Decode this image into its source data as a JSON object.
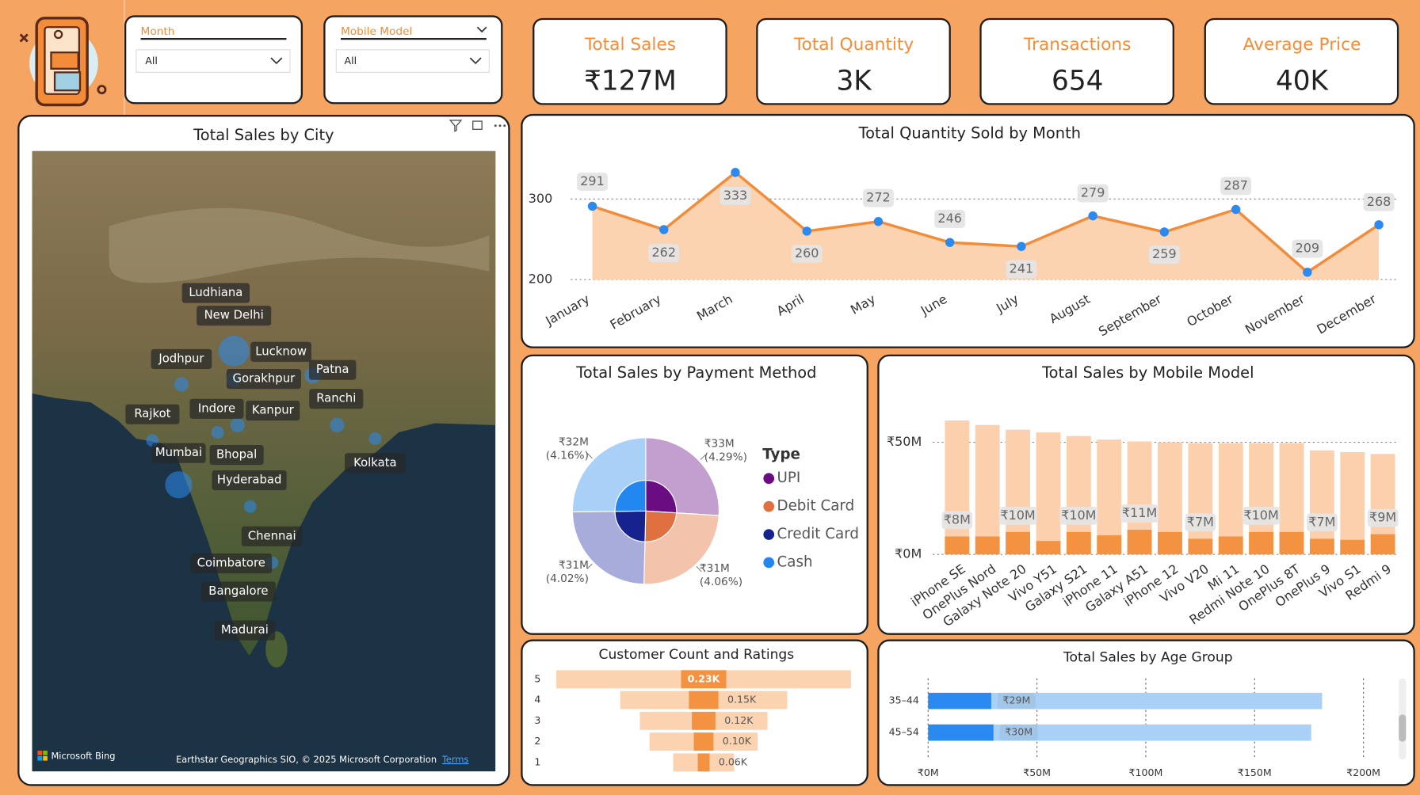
{
  "filters": [
    {
      "label": "Month",
      "value": "All"
    },
    {
      "label": "Mobile Model",
      "value": "All"
    }
  ],
  "kpis": [
    {
      "title": "Total Sales",
      "value": "₹127M"
    },
    {
      "title": "Total Quantity",
      "value": "3K"
    },
    {
      "title": "Transactions",
      "value": "654"
    },
    {
      "title": "Average Price",
      "value": "40K"
    }
  ],
  "map": {
    "title": "Total Sales by City",
    "cities": [
      "Ludhiana",
      "New Delhi",
      "Lucknow",
      "Jodhpur",
      "Patna",
      "Gorakhpur",
      "Ranchi",
      "Rajkot",
      "Indore",
      "Kanpur",
      "Mumbai",
      "Bhopal",
      "Kolkata",
      "Hyderabad",
      "Chennai",
      "Coimbatore",
      "Bangalore",
      "Madurai"
    ],
    "provider": "Microsoft Bing",
    "attribution": "Earthstar Geographics SIO, © 2025 Microsoft Corporation",
    "terms": "Terms"
  },
  "chart_data": [
    {
      "type": "line",
      "title": "Total Quantity Sold by Month",
      "categories": [
        "January",
        "February",
        "March",
        "April",
        "May",
        "June",
        "July",
        "August",
        "September",
        "October",
        "November",
        "December"
      ],
      "values": [
        291,
        262,
        333,
        260,
        272,
        246,
        241,
        279,
        259,
        287,
        209,
        268
      ],
      "color": "#f28c38",
      "fill_color": "#fcd3b1",
      "marker_color": "#2a8af0",
      "ylim": [
        200,
        340
      ],
      "yticks": [
        200,
        300
      ],
      "grid": true
    },
    {
      "type": "pie",
      "title": "Total Sales by Payment Method",
      "legend_title": "Type",
      "categories": [
        "UPI",
        "Debit Card",
        "Credit Card",
        "Cash"
      ],
      "values": [
        33,
        31,
        31,
        32
      ],
      "value_labels": [
        "₹33M",
        "₹31M",
        "₹31M",
        "₹32M"
      ],
      "percent_labels": [
        "(4.29%)",
        "(4.06%)",
        "(4.02%)",
        "(4.16%)"
      ],
      "colors": [
        "#6a0d83",
        "#e0703f",
        "#16238f",
        "#2288f0"
      ],
      "outer_colors": [
        "#c39fcf",
        "#f4c3ab",
        "#a8acdb",
        "#a9d0f7"
      ]
    },
    {
      "type": "bar",
      "title": "Total Sales by Mobile Model",
      "categories": [
        "iPhone SE",
        "OnePlus Nord",
        "Galaxy Note 20",
        "Vivo Y51",
        "Galaxy S21",
        "iPhone 11",
        "Galaxy A51",
        "iPhone 12",
        "Vivo V20",
        "Mi 11",
        "Redmi Note 10",
        "OnePlus 8T",
        "OnePlus 9",
        "Vivo S1",
        "Redmi 9"
      ],
      "series": [
        {
          "color": "#fcd0ad",
          "values": [
            59.7,
            57.7,
            55.6,
            54.4,
            52.8,
            51.2,
            50.4,
            50,
            49.6,
            49.6,
            49.6,
            49.6,
            46.4,
            45.6,
            44.8
          ]
        },
        {
          "color": "#f39241",
          "values": [
            8,
            8,
            10,
            6,
            10,
            8.5,
            11,
            10,
            7,
            8,
            10,
            10,
            7,
            6.5,
            9
          ],
          "value_labels": [
            "₹8M",
            null,
            "₹10M",
            null,
            "₹10M",
            null,
            "₹11M",
            null,
            "₹7M",
            null,
            "₹10M",
            null,
            "₹7M",
            null,
            "₹9M"
          ]
        }
      ],
      "ylim": [
        0,
        64
      ],
      "yticks": [
        {
          "value": 0,
          "label": "₹0M"
        },
        {
          "value": 50,
          "label": "₹50M"
        }
      ],
      "grid": true
    },
    {
      "type": "funnel",
      "title": "Customer Count and Ratings",
      "categories": [
        "5",
        "4",
        "3",
        "2",
        "1"
      ],
      "series": [
        {
          "color": "#fcd3b1",
          "values": [
            1.5,
            0.85,
            0.65,
            0.55,
            0.31
          ]
        },
        {
          "color": "#f39241",
          "values": [
            0.23,
            0.15,
            0.12,
            0.1,
            0.06
          ],
          "value_labels": [
            "0.23K",
            "0.15K",
            "0.12K",
            "0.10K",
            "0.06K"
          ]
        }
      ]
    },
    {
      "type": "hbar",
      "title": "Total Sales by Age Group",
      "categories": [
        "35–44",
        "45–54"
      ],
      "series": [
        {
          "color": "#a9d0f7",
          "values": [
            181,
            176
          ]
        },
        {
          "color": "#2a8af0",
          "values": [
            29,
            30
          ],
          "value_labels": [
            "₹29M",
            "₹30M"
          ]
        }
      ],
      "xlim": [
        0,
        210
      ],
      "xticks": [
        {
          "value": 0,
          "label": "₹0M"
        },
        {
          "value": 50,
          "label": "₹50M"
        },
        {
          "value": 100,
          "label": "₹100M"
        },
        {
          "value": 150,
          "label": "₹150M"
        },
        {
          "value": 200,
          "label": "₹200M"
        }
      ],
      "grid": true
    }
  ]
}
